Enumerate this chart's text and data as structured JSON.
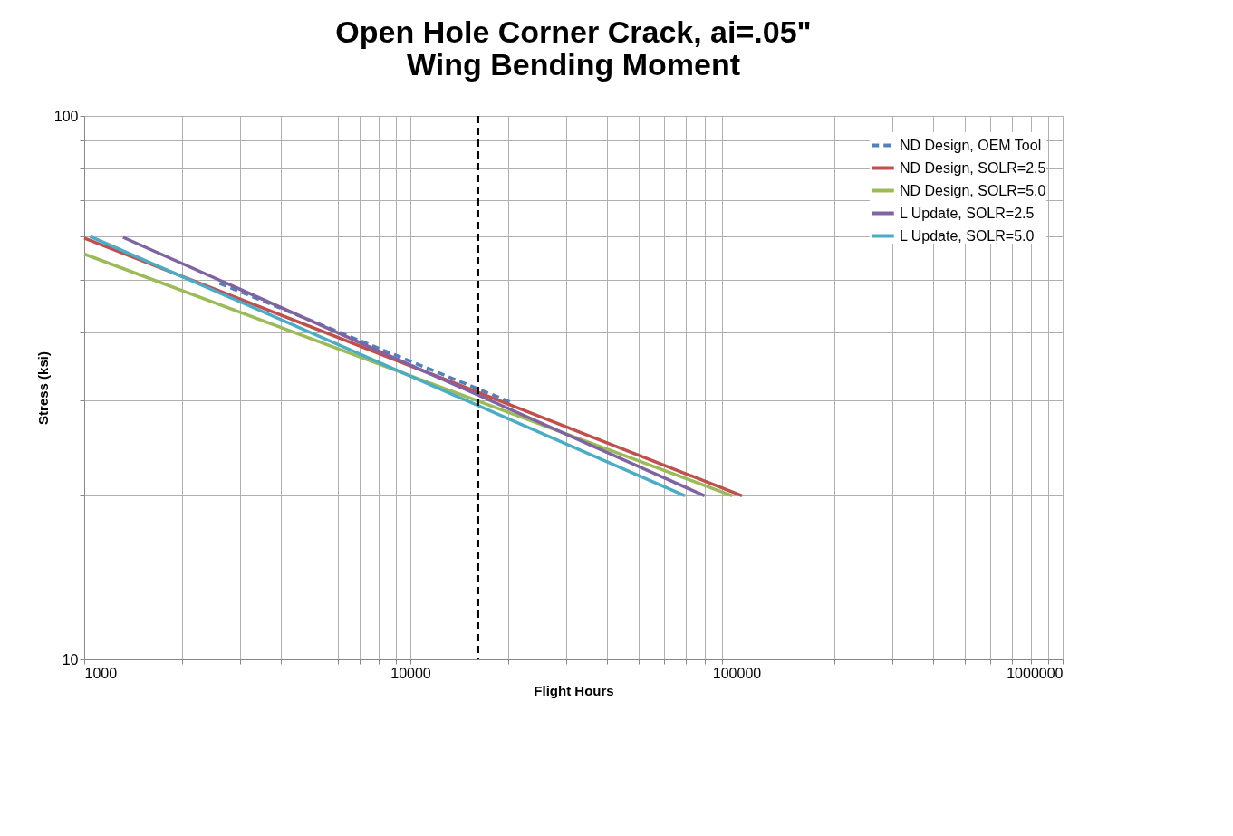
{
  "chart_data": {
    "type": "line",
    "title": [
      "Open Hole Corner Crack, ai=.05\"",
      "Wing Bending Moment"
    ],
    "xlabel": "Flight Hours",
    "ylabel": "Stress (ksi)",
    "log": "xy",
    "grid": true,
    "legend": "top right",
    "marker": "none",
    "xlim": [
      1000,
      1000000
    ],
    "ylim": [
      10,
      100
    ],
    "xticks": [
      1000,
      {
        "value": 2000,
        "label": null
      },
      {
        "value": 3000,
        "label": null
      },
      {
        "value": 4000,
        "label": null
      },
      {
        "value": 5000,
        "label": null
      },
      {
        "value": 6000,
        "label": null
      },
      {
        "value": 7000,
        "label": null
      },
      {
        "value": 8000,
        "label": null
      },
      {
        "value": 9000,
        "label": null
      },
      10000,
      {
        "value": 20000,
        "label": null
      },
      {
        "value": 30000,
        "label": null
      },
      {
        "value": 40000,
        "label": null
      },
      {
        "value": 50000,
        "label": null
      },
      {
        "value": 60000,
        "label": null
      },
      {
        "value": 70000,
        "label": null
      },
      {
        "value": 80000,
        "label": null
      },
      {
        "value": 90000,
        "label": null
      },
      100000,
      {
        "value": 200000,
        "label": null
      },
      {
        "value": 300000,
        "label": null
      },
      {
        "value": 400000,
        "label": null
      },
      {
        "value": 500000,
        "label": null
      },
      {
        "value": 600000,
        "label": null
      },
      {
        "value": 700000,
        "label": null
      },
      {
        "value": 800000,
        "label": null
      },
      {
        "value": 900000,
        "label": null
      },
      1000000
    ],
    "yticks": [
      10,
      {
        "value": 20,
        "label": null
      },
      {
        "value": 30,
        "label": null
      },
      {
        "value": 40,
        "label": null
      },
      {
        "value": 50,
        "label": null
      },
      {
        "value": 60,
        "label": null
      },
      {
        "value": 70,
        "label": null
      },
      {
        "value": 80,
        "label": null
      },
      {
        "value": 90,
        "label": null
      },
      100
    ],
    "series": [
      {
        "name": "ND Design, OEM Tool",
        "color": "#4f81bd",
        "line_style": "dashed",
        "x": [
          2600,
          20400
        ],
        "values": [
          49.2,
          29.7
        ]
      },
      {
        "name": "ND Design, SOLR=2.5",
        "color": "#c0504d",
        "line_style": "solid",
        "x": [
          1000,
          104000
        ],
        "values": [
          59.6,
          20
        ]
      },
      {
        "name": "ND Design, SOLR=5.0",
        "color": "#9bbb59",
        "line_style": "solid",
        "x": [
          1000,
          97000
        ],
        "values": [
          55.7,
          20
        ]
      },
      {
        "name": "L Update, SOLR=2.5",
        "color": "#8064a2",
        "line_style": "solid",
        "x": [
          1315,
          79800
        ],
        "values": [
          59.8,
          20
        ]
      },
      {
        "name": "L Update, SOLR=5.0",
        "color": "#4bacc6",
        "line_style": "solid",
        "x": [
          1043,
          69500
        ],
        "values": [
          60,
          20
        ]
      }
    ],
    "ref_lines": [
      {
        "axis": "x",
        "value": 16100,
        "color": "#000000",
        "line_style": "dashed"
      }
    ]
  }
}
